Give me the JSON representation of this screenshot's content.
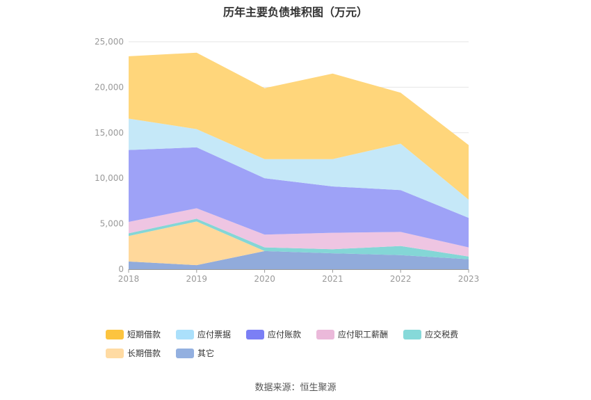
{
  "chart_data": {
    "type": "area",
    "stacked": true,
    "title": "历年主要负债堆积图（万元）",
    "x": [
      "2018",
      "2019",
      "2020",
      "2021",
      "2022",
      "2023"
    ],
    "ylim": [
      0,
      25000
    ],
    "yticks": [
      0,
      5000,
      10000,
      15000,
      20000,
      25000
    ],
    "ytick_labels": [
      "0",
      "5,000",
      "10,000",
      "15,000",
      "20,000",
      "25,000"
    ],
    "grid": true,
    "legend_position": "bottom",
    "series": [
      {
        "name": "其它",
        "color": "#91abdb",
        "values": [
          850,
          450,
          2000,
          1750,
          1550,
          1100
        ]
      },
      {
        "name": "长期借款",
        "color": "#ffd89b",
        "values": [
          2800,
          4800,
          0,
          0,
          0,
          0
        ]
      },
      {
        "name": "应交税费",
        "color": "#84d6d6",
        "values": [
          300,
          300,
          400,
          450,
          1000,
          300
        ]
      },
      {
        "name": "应付职工薪酬",
        "color": "#eec5e2",
        "values": [
          1250,
          1150,
          1400,
          1800,
          1550,
          1000
        ]
      },
      {
        "name": "应付账款",
        "color": "#9ea2f7",
        "values": [
          7900,
          6700,
          6200,
          5100,
          4600,
          3250
        ]
      },
      {
        "name": "应付票据",
        "color": "#c5e8f8",
        "values": [
          3450,
          2000,
          2100,
          3000,
          5100,
          2000
        ]
      },
      {
        "name": "短期借款",
        "color": "#ffd67b",
        "values": [
          6850,
          8400,
          7800,
          9400,
          5600,
          6000
        ]
      }
    ],
    "legend": [
      {
        "name": "短期借款",
        "color": "#fcc43f"
      },
      {
        "name": "应付票据",
        "color": "#abe0fb"
      },
      {
        "name": "应付账款",
        "color": "#7b7ff5"
      },
      {
        "name": "应付职工薪酬",
        "color": "#ebb9da"
      },
      {
        "name": "应交税费",
        "color": "#86d9d9"
      },
      {
        "name": "长期借款",
        "color": "#ffdba3"
      },
      {
        "name": "其它",
        "color": "#93b0e0"
      }
    ]
  },
  "source": "数据来源：恒生聚源"
}
